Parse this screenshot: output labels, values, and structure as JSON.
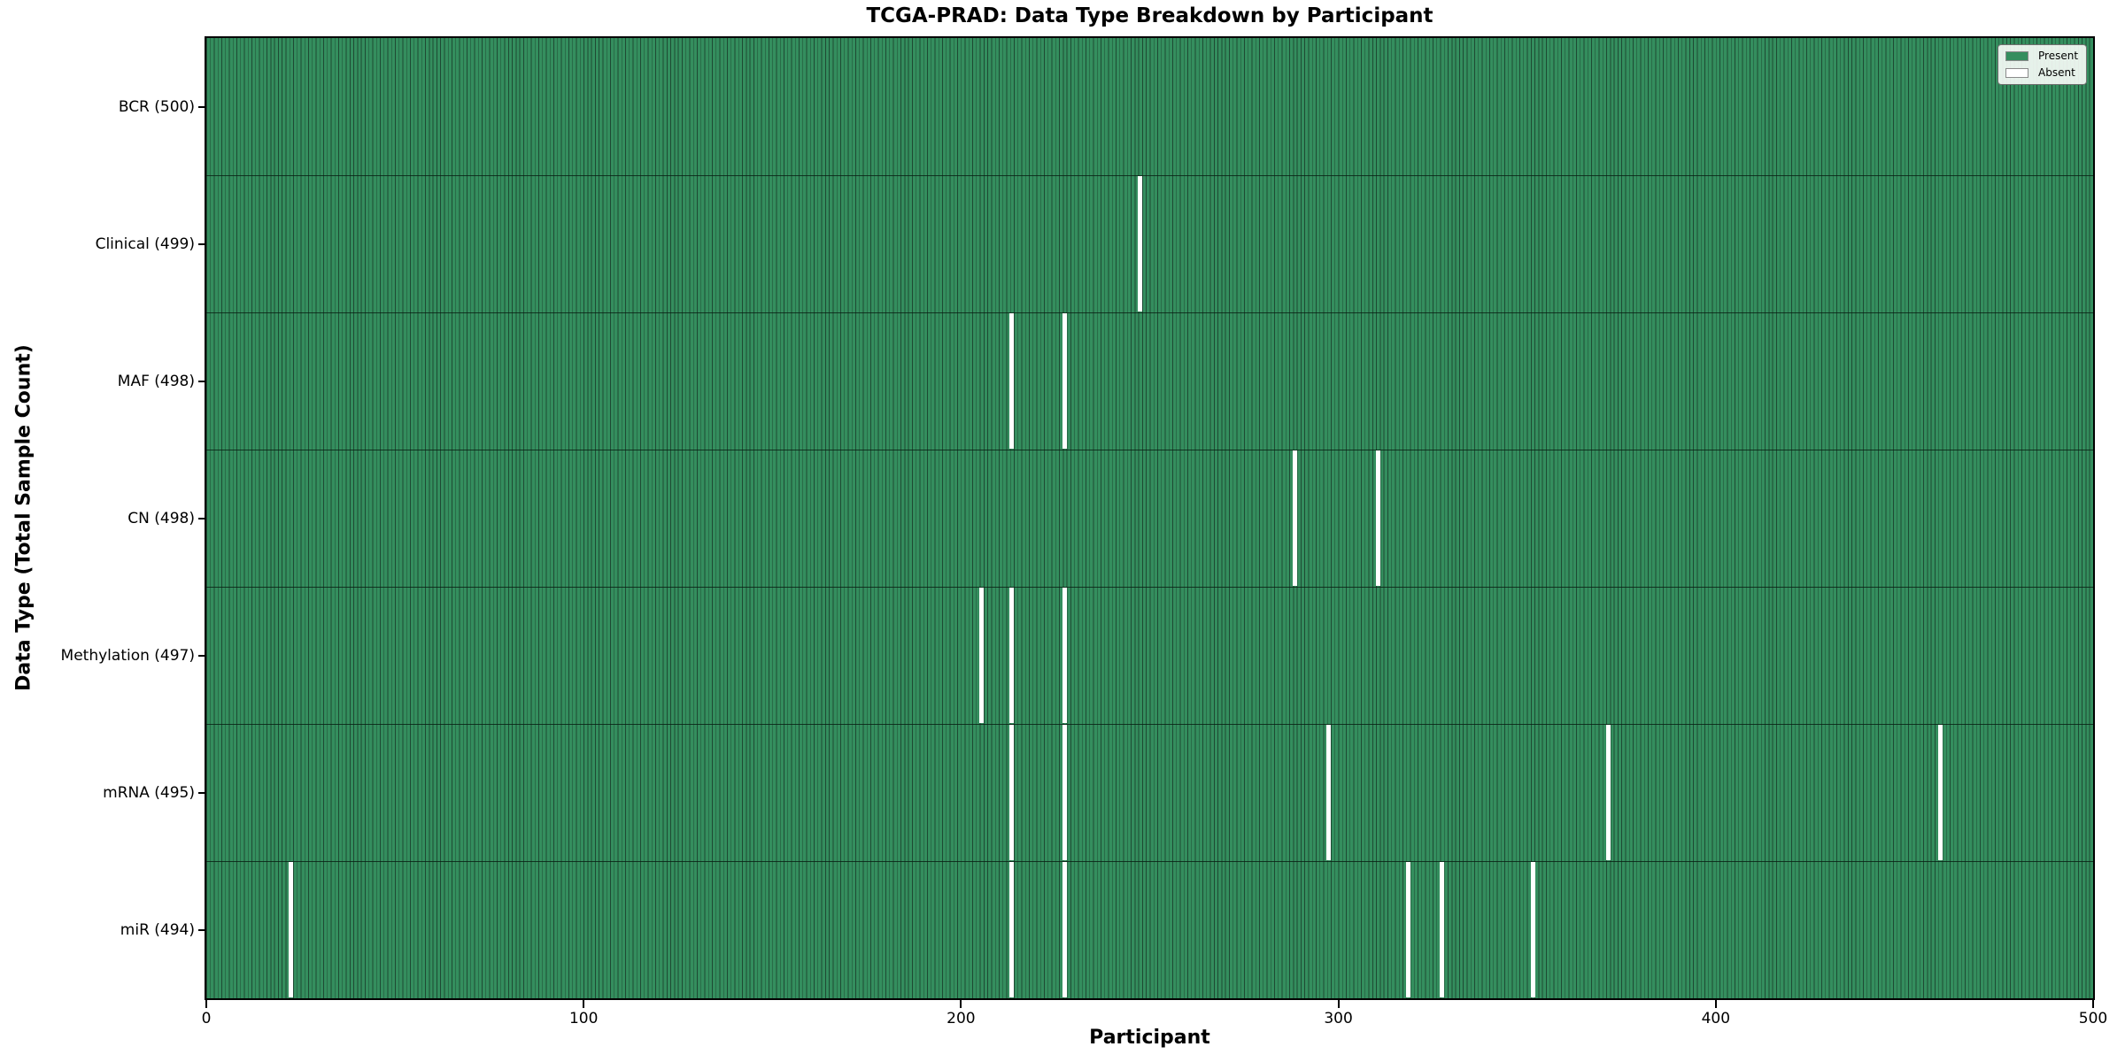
{
  "chart": {
    "title": "TCGA-PRAD: Data Type Breakdown by Participant",
    "xlabel": "Participant",
    "ylabel": "Data Type (Total Sample Count)"
  },
  "legend": {
    "items": [
      {
        "label": "Present",
        "color": "#348e5e"
      },
      {
        "label": "Absent",
        "color": "#ffffff"
      }
    ]
  },
  "chart_data": {
    "type": "heatmap",
    "title": "TCGA-PRAD: Data Type Breakdown by Participant",
    "xlabel": "Participant",
    "ylabel": "Data Type (Total Sample Count)",
    "x_range": [
      0,
      500
    ],
    "x_ticks": [
      "0",
      "100",
      "200",
      "300",
      "400",
      "500"
    ],
    "n_participants": 500,
    "grid": false,
    "legend_position": "upper right",
    "legend_entries": [
      "Present",
      "Absent"
    ],
    "colors": {
      "present": "#348e5e",
      "absent": "#ffffff",
      "cell_edge": "#1e4a33",
      "row_divider": "#12301e",
      "axis": "#000000"
    },
    "rows": [
      {
        "id": "bcr",
        "label": "BCR (500)",
        "data_type": "BCR",
        "total_samples": 500,
        "absent_participants": []
      },
      {
        "id": "clinical",
        "label": "Clinical (499)",
        "data_type": "Clinical",
        "total_samples": 499,
        "absent_participants": [
          247
        ]
      },
      {
        "id": "maf",
        "label": "MAF (498)",
        "data_type": "MAF",
        "total_samples": 498,
        "absent_participants": [
          213,
          227
        ]
      },
      {
        "id": "cn",
        "label": "CN (498)",
        "data_type": "CN",
        "total_samples": 498,
        "absent_participants": [
          288,
          310
        ]
      },
      {
        "id": "methylation",
        "label": "Methylation (497)",
        "data_type": "Methylation",
        "total_samples": 497,
        "absent_participants": [
          205,
          213,
          227
        ]
      },
      {
        "id": "mrna",
        "label": "mRNA (495)",
        "data_type": "mRNA",
        "total_samples": 495,
        "absent_participants": [
          213,
          227,
          297,
          371,
          459
        ]
      },
      {
        "id": "mir",
        "label": "miR (494)",
        "data_type": "miR",
        "total_samples": 494,
        "absent_participants": [
          22,
          213,
          227,
          318,
          327,
          351
        ]
      }
    ]
  }
}
